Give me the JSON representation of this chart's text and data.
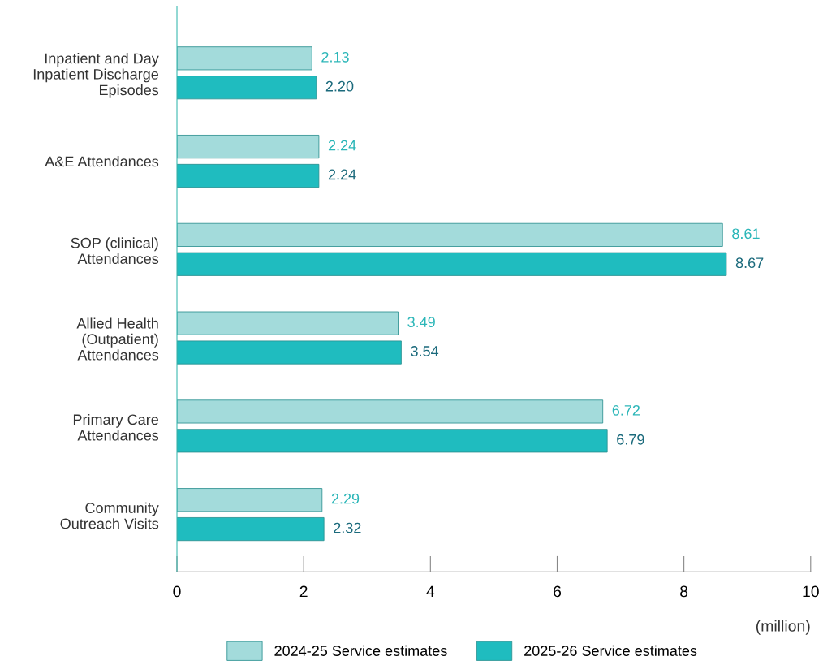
{
  "chart_data": {
    "type": "bar",
    "orientation": "horizontal",
    "xlabel": "(million)",
    "categories": [
      "Inpatient and Day\nInpatient Discharge\nEpisodes",
      "A&E Attendances",
      "SOP (clinical)\nAttendances",
      "Allied Health\n(Outpatient)\nAttendances",
      "Primary Care\nAttendances",
      "Community\nOutreach Visits"
    ],
    "series": [
      {
        "name": "2024-25 Service estimates",
        "color": "#a3dbdb",
        "values": [
          2.13,
          2.24,
          8.61,
          3.49,
          6.72,
          2.29
        ],
        "value_labels": [
          "2.13",
          "2.24",
          "8.61",
          "3.49",
          "6.72",
          "2.29"
        ]
      },
      {
        "name": "2025-26 Service estimates",
        "color": "#1fbcbf",
        "values": [
          2.2,
          2.24,
          8.67,
          3.54,
          6.79,
          2.32
        ],
        "value_labels": [
          "2.20",
          "2.24",
          "8.67",
          "3.54",
          "6.79",
          "2.32"
        ]
      }
    ],
    "xlim": [
      0,
      10
    ],
    "xticks": [
      0,
      2,
      4,
      6,
      8,
      10
    ],
    "legend": "bottom",
    "grid": false
  }
}
